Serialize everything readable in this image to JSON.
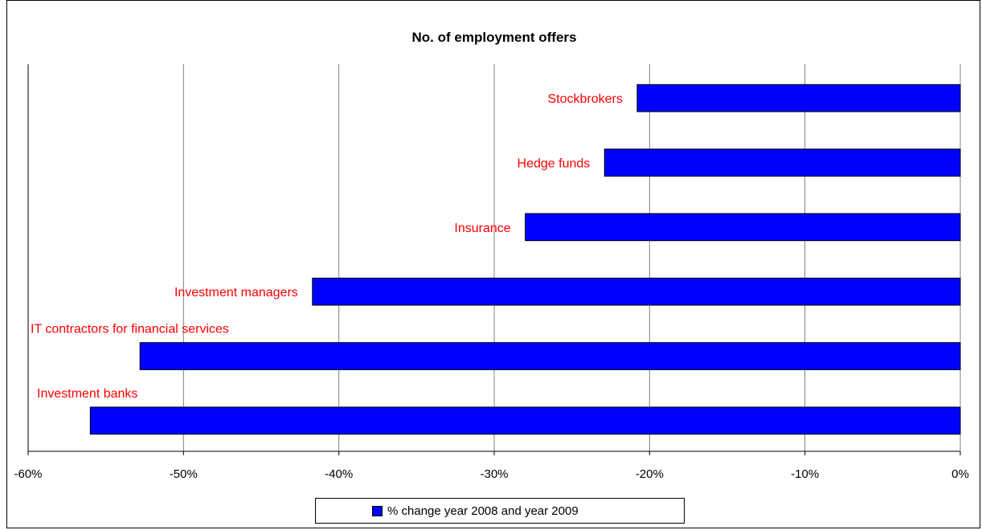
{
  "chart_data": {
    "type": "bar",
    "orientation": "horizontal",
    "title": "No. of employment offers",
    "categories": [
      "Stockbrokers",
      "Hedge funds",
      "Insurance",
      "Investment managers",
      "IT contractors for financial services",
      "Investment banks"
    ],
    "series": [
      {
        "name": "% change year 2008 and year 2009",
        "values": [
          -20.8,
          -22.9,
          -28.0,
          -41.7,
          -52.8,
          -56.0
        ],
        "color": "#0000FF"
      }
    ],
    "xlim": [
      -60,
      0
    ],
    "x_ticks": [
      "-60%",
      "-50%",
      "-40%",
      "-30%",
      "-20%",
      "-10%",
      "0%"
    ],
    "grid": "vertical",
    "legend_position": "bottom",
    "category_label_color": "#FF0000"
  }
}
